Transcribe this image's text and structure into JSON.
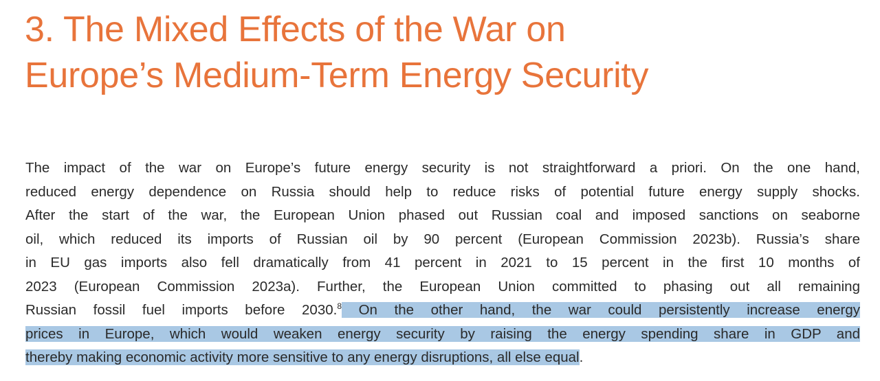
{
  "heading": {
    "lines": [
      "3. The Mixed Effects of the War on",
      "Europe’s Medium-Term Energy Security"
    ]
  },
  "paragraph": {
    "plain_lines": [
      "The impact of the war on Europe’s future energy security is not straightforward a priori. On the one hand,",
      "reduced energy dependence on Russia should help to reduce risks of potential future energy supply shocks.",
      "After the start of the war, the European Union phased out Russian coal and imposed sanctions on seaborne",
      "oil, which reduced its imports of Russian oil by 90 percent (European Commission 2023b). Russia’s share",
      "in EU gas imports also fell dramatically from 41 percent in 2021 to 15 percent in the first 10 months of",
      "2023 (European Commission 2023a). Further, the European Union committed to phasing out all remaining",
      "Russian fossil fuel imports before 2030."
    ],
    "footnote": "8",
    "highlighted_lines": [
      "On the other hand, the war could persistently increase energy",
      "prices in Europe, which would weaken energy security by raising the energy spending share in GDP and",
      "thereby making economic activity more sensitive to any energy disruptions, all else equal"
    ],
    "final": "."
  }
}
